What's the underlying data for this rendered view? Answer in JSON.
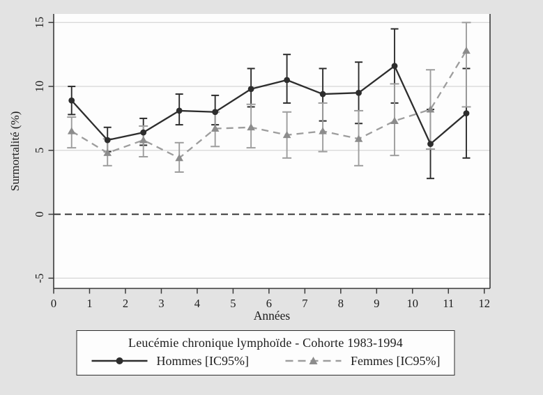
{
  "figure": {
    "background_color": "#e3e3e3",
    "plot_background_color": "#fdfdfd"
  },
  "chart_data": {
    "type": "line",
    "description": "Excess mortality with 95% confidence error bars, two series over time",
    "x": [
      0.5,
      1.5,
      2.5,
      3.5,
      4.5,
      5.5,
      6.5,
      7.5,
      8.5,
      9.5,
      10.5,
      11.5
    ],
    "series": [
      {
        "id": "hommes",
        "label": "Hommes [IC95%]",
        "marker": "circle",
        "line_style": "solid",
        "color": "#2d2d2d",
        "marker_color": "#2d2d2d",
        "values": [
          8.9,
          5.8,
          6.4,
          8.1,
          8.0,
          9.8,
          10.5,
          9.4,
          9.5,
          11.6,
          5.5,
          7.9
        ],
        "ci_low": [
          7.8,
          4.9,
          5.4,
          7.0,
          7.0,
          8.4,
          8.7,
          7.3,
          7.1,
          8.7,
          2.8,
          4.4
        ],
        "ci_high": [
          10.0,
          6.8,
          7.5,
          9.4,
          9.3,
          11.4,
          12.5,
          11.4,
          11.9,
          14.5,
          8.2,
          11.4
        ]
      },
      {
        "id": "femmes",
        "label": "Femmes [IC95%]",
        "marker": "triangle",
        "line_style": "dashed",
        "color": "#9d9d9d",
        "marker_color": "#8c8c8c",
        "values": [
          6.5,
          4.8,
          5.8,
          4.4,
          6.7,
          6.8,
          6.2,
          6.5,
          5.9,
          7.3,
          8.2,
          12.8
        ],
        "ci_low": [
          5.2,
          3.8,
          4.5,
          3.3,
          5.3,
          5.2,
          4.4,
          4.9,
          3.8,
          4.6,
          5.1,
          8.4
        ],
        "ci_high": [
          7.6,
          5.9,
          6.9,
          5.6,
          8.0,
          8.6,
          8.0,
          8.7,
          8.1,
          10.2,
          11.3,
          15.0
        ]
      }
    ],
    "xlabel": "Années",
    "ylabel": "Surmortalité (%)",
    "x_ticks": [
      0,
      1,
      2,
      3,
      4,
      5,
      6,
      7,
      8,
      9,
      10,
      11,
      12
    ],
    "y_ticks": [
      -5,
      0,
      5,
      10,
      15
    ],
    "y_grid_values": [
      -5,
      5,
      10,
      15
    ],
    "zero_line": {
      "value": 0,
      "style": "dashed",
      "color": "#2d2d2d"
    },
    "xlim": [
      0,
      12.16
    ],
    "ylim": [
      -5.8,
      15.67
    ],
    "grid": "horizontal",
    "y_tick_labels_rotated": true,
    "legend": {
      "position": "bottom-center",
      "title": "Leucémie chronique lymphoïde - Cohorte 1983-1994"
    },
    "style": {
      "grid_color": "#d9d9d9",
      "axis_color": "#3a3a3a",
      "text_color": "#1c1c1c"
    }
  }
}
